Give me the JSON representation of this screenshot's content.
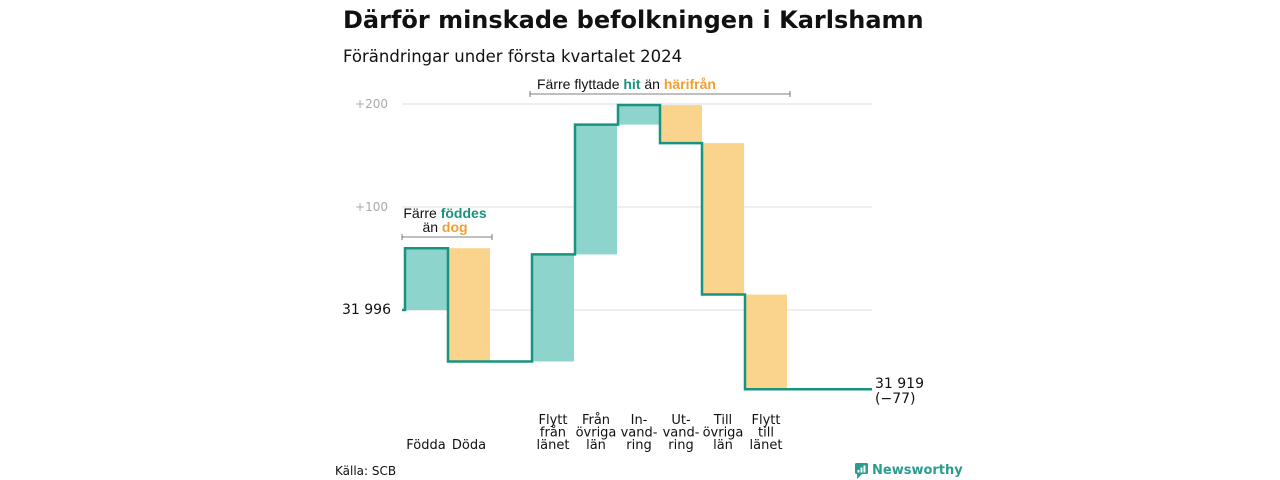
{
  "title": "Därför minskade befolkningen i Karlshamn",
  "subtitle": "Förändringar under första kvartalet 2024",
  "colors": {
    "increase": "#8dd5cc",
    "decrease": "#fad48c",
    "line": "#17937f",
    "grid": "#dddddd",
    "teal_text": "#17937f",
    "orange_text": "#f0a030"
  },
  "chart_data": {
    "type": "waterfall",
    "start_value": 31996,
    "start_label": "31  996",
    "end_value": 31919,
    "end_label": "31 919",
    "end_change_label": "(−77)",
    "ylim": [
      -75,
      200
    ],
    "yticks": [
      {
        "value": 100,
        "label": "+100"
      },
      {
        "value": 200,
        "label": "+200"
      }
    ],
    "steps": [
      {
        "label": [
          "Födda"
        ],
        "change": 60
      },
      {
        "label": [
          "Döda"
        ],
        "change": -110
      },
      {
        "label": [
          "Flytt",
          "från",
          "länet"
        ],
        "change": 104
      },
      {
        "label": [
          "Från",
          "övriga",
          "län"
        ],
        "change": 126
      },
      {
        "label": [
          "In-",
          "vand-",
          "ring"
        ],
        "change": 19
      },
      {
        "label": [
          "Ut-",
          "vand-",
          "ring"
        ],
        "change": -37
      },
      {
        "label": [
          "Till",
          "övriga",
          "län"
        ],
        "change": -147
      },
      {
        "label": [
          "Flytt",
          "till",
          "länet"
        ],
        "change": -92
      }
    ],
    "annotations": {
      "births": {
        "line1_a": "Färre ",
        "line1_b": "föddes",
        "line2_a": "än ",
        "line2_b": "dog"
      },
      "migration": {
        "a": "Färre flyttade ",
        "b": "hit",
        "c": " än ",
        "d": "härifrån"
      }
    }
  },
  "source": "Källa: SCB",
  "logo_text": "Newsworthy"
}
